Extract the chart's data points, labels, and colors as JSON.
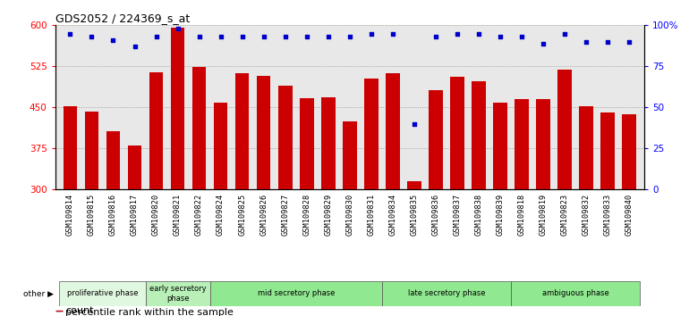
{
  "title": "GDS2052 / 224369_s_at",
  "samples": [
    "GSM109814",
    "GSM109815",
    "GSM109816",
    "GSM109817",
    "GSM109820",
    "GSM109821",
    "GSM109822",
    "GSM109824",
    "GSM109825",
    "GSM109826",
    "GSM109827",
    "GSM109828",
    "GSM109829",
    "GSM109830",
    "GSM109831",
    "GSM109834",
    "GSM109835",
    "GSM109836",
    "GSM109837",
    "GSM109838",
    "GSM109839",
    "GSM109818",
    "GSM109819",
    "GSM109823",
    "GSM109832",
    "GSM109833",
    "GSM109840"
  ],
  "counts": [
    453,
    443,
    407,
    381,
    514,
    595,
    524,
    458,
    512,
    507,
    490,
    467,
    469,
    424,
    502,
    512,
    315,
    482,
    506,
    498,
    459,
    466,
    465,
    519,
    453,
    441,
    437
  ],
  "percentile_ranks": [
    95,
    93,
    91,
    87,
    93,
    98,
    93,
    93,
    93,
    93,
    93,
    93,
    93,
    93,
    95,
    95,
    40,
    93,
    95,
    95,
    93,
    93,
    89,
    95,
    90,
    90,
    90
  ],
  "phases_info": [
    {
      "label": "proliferative phase",
      "start": 0,
      "end": 4,
      "color": "#e0f8e0"
    },
    {
      "label": "early secretory\nphase",
      "start": 4,
      "end": 7,
      "color": "#b8f0b8"
    },
    {
      "label": "mid secretory phase",
      "start": 7,
      "end": 15,
      "color": "#90e890"
    },
    {
      "label": "late secretory phase",
      "start": 15,
      "end": 21,
      "color": "#90e890"
    },
    {
      "label": "ambiguous phase",
      "start": 21,
      "end": 27,
      "color": "#90e890"
    }
  ],
  "bar_color": "#cc0000",
  "dot_color": "#0000cc",
  "ylim_left": [
    300,
    600
  ],
  "ylim_right": [
    0,
    100
  ],
  "yticks_left": [
    300,
    375,
    450,
    525,
    600
  ],
  "yticks_right": [
    0,
    25,
    50,
    75,
    100
  ],
  "legend_count_label": "count",
  "legend_pct_label": "percentile rank within the sample",
  "other_label": "other"
}
